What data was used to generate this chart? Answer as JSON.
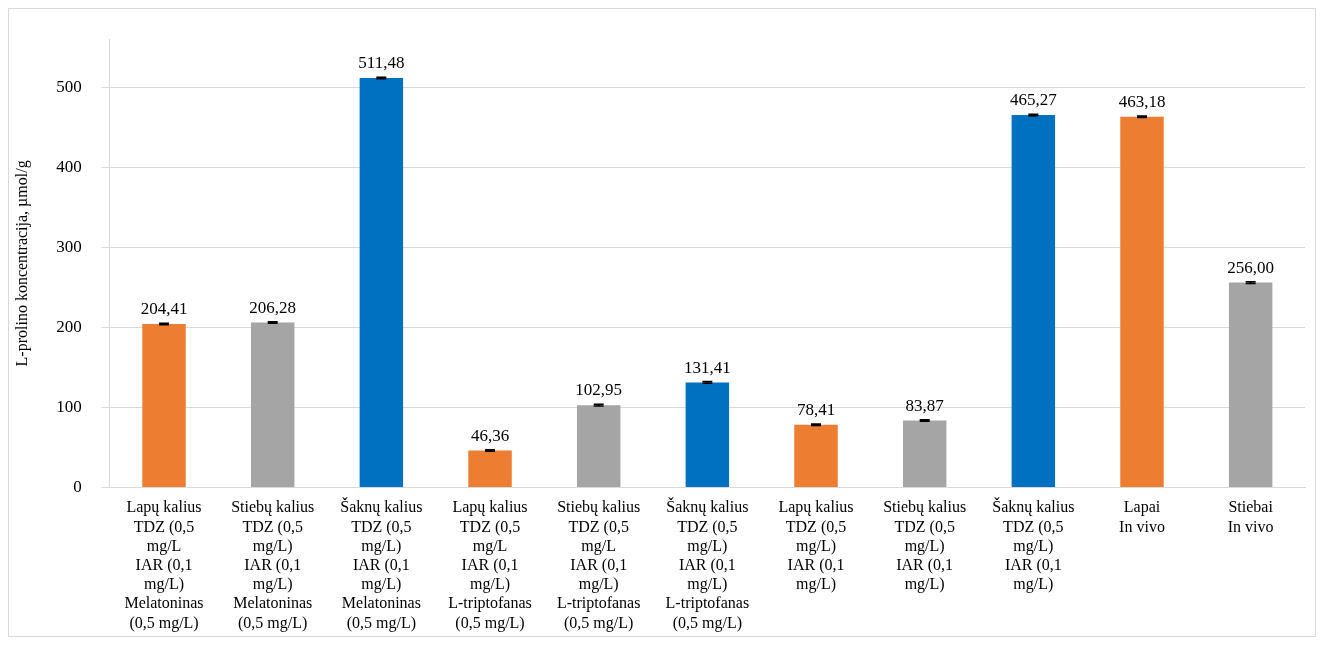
{
  "chart_data": {
    "type": "bar",
    "ylabel": "L-prolino koncentracija, µmol/g",
    "categories": [
      "Lapų kalius\nTDZ (0,5\nmg/L\nIAR (0,1\nmg/L)\nMelatoninas\n(0,5 mg/L)",
      "Stiebų kalius\nTDZ (0,5\nmg/L)\nIAR (0,1\nmg/L)\nMelatoninas\n(0,5 mg/L)",
      "Šaknų kalius\nTDZ (0,5\nmg/L)\nIAR (0,1\nmg/L)\nMelatoninas\n(0,5 mg/L)",
      "Lapų kalius\nTDZ (0,5\nmg/L\nIAR (0,1\nmg/L)\nL-triptofanas\n(0,5 mg/L)",
      "Stiebų kalius\nTDZ (0,5\nmg/L\nIAR (0,1\nmg/L)\nL-triptofanas\n(0,5 mg/L)",
      "Šaknų kalius\nTDZ (0,5\nmg/L)\nIAR (0,1\nmg/L)\nL-triptofanas\n(0,5 mg/L)",
      "Lapų kalius\nTDZ (0,5\nmg/L)\nIAR (0,1\nmg/L)",
      "Stiebų kalius\nTDZ (0,5\nmg/L)\nIAR (0,1\nmg/L)",
      "Šaknų kalius\nTDZ (0,5\nmg/L)\nIAR (0,1\nmg/L)",
      "Lapai\nIn vivo",
      "Stiebai\nIn vivo"
    ],
    "values": [
      204.41,
      206.28,
      511.48,
      46.36,
      102.95,
      131.41,
      78.41,
      83.87,
      465.27,
      463.18,
      256.0
    ],
    "value_labels": [
      "204,41",
      "206,28",
      "511,48",
      "46,36",
      "102,95",
      "131,41",
      "78,41",
      "83,87",
      "465,27",
      "463,18",
      "256,00"
    ],
    "errors": [
      1,
      1,
      1,
      1,
      1,
      1,
      1,
      1,
      1,
      1,
      1
    ],
    "colors": [
      "#ed7d31",
      "#a5a5a5",
      "#0070c0",
      "#ed7d31",
      "#a5a5a5",
      "#0070c0",
      "#ed7d31",
      "#a5a5a5",
      "#0070c0",
      "#ed7d31",
      "#a5a5a5"
    ],
    "ylim": [
      0,
      560
    ],
    "yticks": [
      0,
      100,
      200,
      300,
      400,
      500
    ],
    "grid": "y",
    "legend": false
  }
}
